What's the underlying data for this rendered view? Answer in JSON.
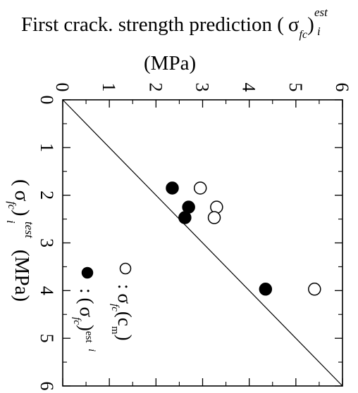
{
  "chart_data": {
    "type": "scatter",
    "title": {
      "text": "First crack. strength prediction (",
      "symbol": "σ",
      "subscript": "fc",
      "sub_i": "i",
      "superscript": "est",
      "units": "(MPa)"
    },
    "xlabel": {
      "prefix": "(",
      "symbol": "σ",
      "subscript": "fc",
      "sub_i": "i",
      "close": ")",
      "superscript": "test",
      "units": "(MPa)"
    },
    "xlim": [
      0,
      6
    ],
    "ylim": [
      0,
      6
    ],
    "x_ticks": [
      "0",
      "1",
      "2",
      "3",
      "4",
      "5",
      "6"
    ],
    "y_ticks": [
      "0",
      "1",
      "2",
      "3",
      "4",
      "5",
      "6"
    ],
    "x_tick_values": [
      0,
      1,
      2,
      3,
      4,
      5,
      6
    ],
    "y_tick_values": [
      0,
      1,
      2,
      3,
      4,
      5,
      6
    ],
    "reference_line": {
      "from": [
        0,
        0
      ],
      "to": [
        6,
        6
      ]
    },
    "series": [
      {
        "marker": "open-circle",
        "color": "#000000",
        "points": [
          [
            1.85,
            2.95
          ],
          [
            2.25,
            3.3
          ],
          [
            2.47,
            3.25
          ],
          [
            3.97,
            5.4
          ]
        ]
      },
      {
        "marker": "filled-circle",
        "color": "#000000",
        "points": [
          [
            1.85,
            2.35
          ],
          [
            2.25,
            2.7
          ],
          [
            2.47,
            2.62
          ],
          [
            3.97,
            4.35
          ]
        ]
      }
    ],
    "legend": {
      "placement": "bottom-right",
      "entries": [
        {
          "marker": "open-circle",
          "sep": ":",
          "symbol": "σ",
          "subscript": "fc",
          "paren_open": "(",
          "arg": "c",
          "arg_sub": "m",
          "paren_close": ")"
        },
        {
          "marker": "filled-circle",
          "sep": ":",
          "paren_open": "(",
          "symbol": "σ",
          "subscript": "fc",
          "sub_i": "i",
          "paren_close": ")",
          "sup": "est"
        }
      ]
    }
  }
}
